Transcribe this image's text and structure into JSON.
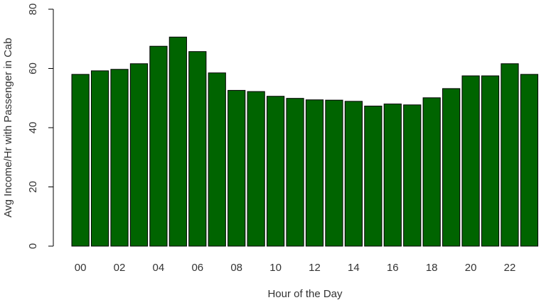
{
  "chart_data": {
    "type": "bar",
    "title": "",
    "xlabel": "Hour of the Day",
    "ylabel": "Avg Income/Hr with Passenger in Cab",
    "ylim": [
      0,
      80
    ],
    "yticks": [
      0,
      20,
      40,
      60,
      80
    ],
    "bar_color": "#006400",
    "grid": false,
    "categories": [
      "00",
      "01",
      "02",
      "03",
      "04",
      "05",
      "06",
      "07",
      "08",
      "09",
      "10",
      "11",
      "12",
      "13",
      "14",
      "15",
      "16",
      "17",
      "18",
      "19",
      "20",
      "21",
      "22",
      "23"
    ],
    "x_tick_labels": [
      "00",
      "02",
      "04",
      "06",
      "08",
      "10",
      "12",
      "14",
      "16",
      "18",
      "20",
      "22"
    ],
    "values": [
      58.0,
      59.2,
      59.7,
      61.6,
      67.5,
      70.6,
      65.7,
      58.5,
      52.6,
      52.2,
      50.6,
      49.9,
      49.4,
      49.3,
      48.9,
      47.3,
      48.0,
      47.7,
      50.1,
      53.2,
      57.5,
      57.5,
      61.6,
      58.0
    ]
  }
}
